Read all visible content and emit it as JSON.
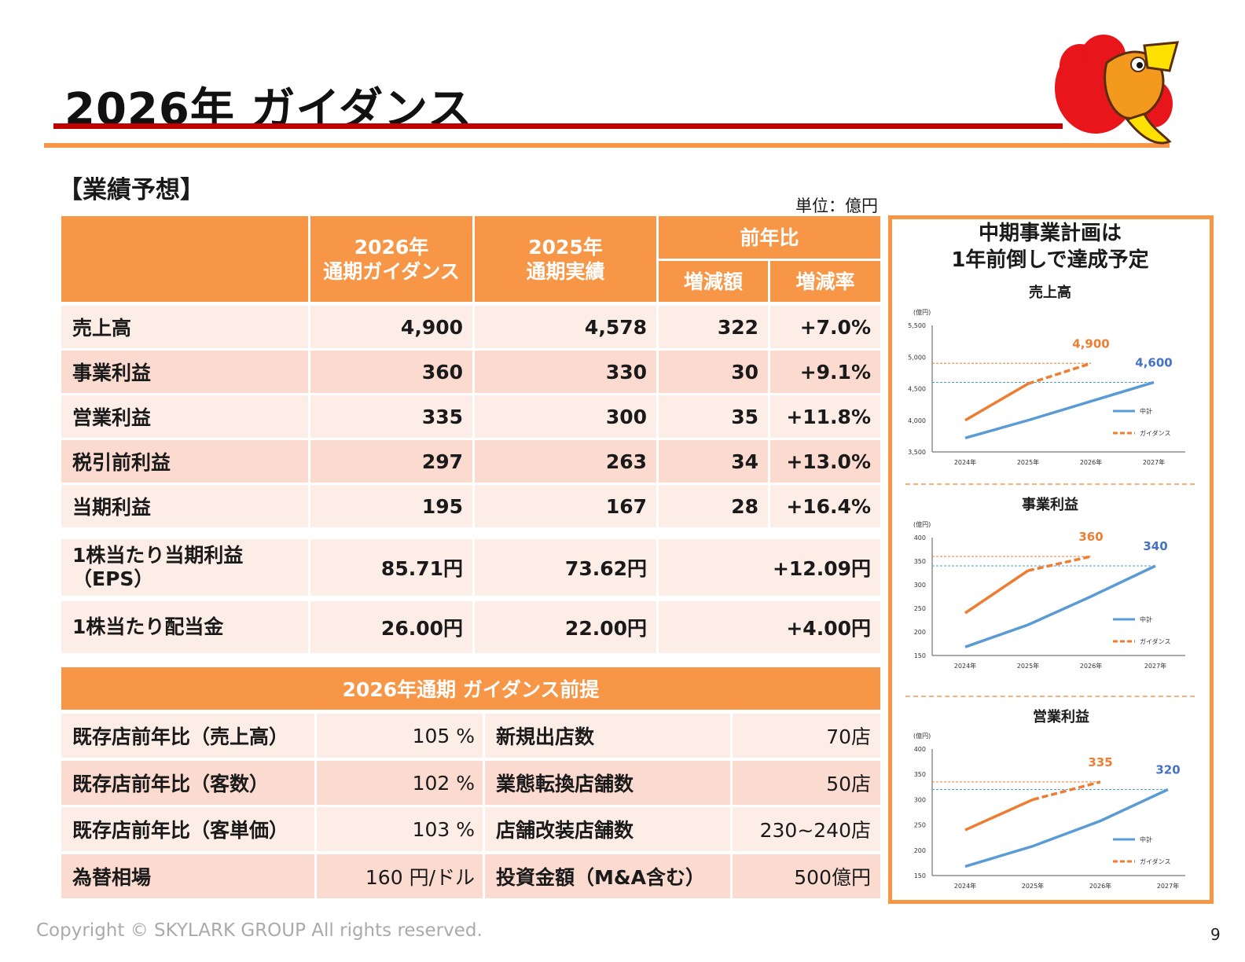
{
  "title": "2026年 ガイダンス",
  "section_title": "【業績予想】",
  "unit": "単位：億円",
  "table": {
    "headers": {
      "col1": [
        "2026年",
        "通期ガイダンス"
      ],
      "col2": [
        "2025年",
        "通期実績"
      ],
      "yoy": "前年比",
      "diff": "増減額",
      "rate": "増減率"
    },
    "rows": [
      {
        "label": "売上高",
        "g2026": "4,900",
        "a2025": "4,578",
        "diff": "322",
        "rate": "+7.0%"
      },
      {
        "label": "事業利益",
        "g2026": "360",
        "a2025": "330",
        "diff": "30",
        "rate": "+9.1%"
      },
      {
        "label": "営業利益",
        "g2026": "335",
        "a2025": "300",
        "diff": "35",
        "rate": "+11.8%"
      },
      {
        "label": "税引前利益",
        "g2026": "297",
        "a2025": "263",
        "diff": "34",
        "rate": "+13.0%"
      },
      {
        "label": "当期利益",
        "g2026": "195",
        "a2025": "167",
        "diff": "28",
        "rate": "+16.4%"
      }
    ],
    "per_share": [
      {
        "label": [
          "1株当たり当期利益",
          "（EPS）"
        ],
        "g2026": "85.71円",
        "a2025": "73.62円",
        "yoy": "+12.09円"
      },
      {
        "label": [
          "1株当たり配当金"
        ],
        "g2026": "26.00円",
        "a2025": "22.00円",
        "yoy": "+4.00円"
      }
    ]
  },
  "premises": {
    "title": "2026年通期 ガイダンス前提",
    "rows": [
      {
        "l1": "既存店前年比（売上高）",
        "v1": "105 %",
        "l2": "新規出店数",
        "v2": "70店"
      },
      {
        "l1": "既存店前年比（客数）",
        "v1": "102 %",
        "l2": "業態転換店舗数",
        "v2": "50店"
      },
      {
        "l1": "既存店前年比（客単価）",
        "v1": "103 %",
        "l2": "店舗改装店舗数",
        "v2": "230~240店"
      },
      {
        "l1": "為替相場",
        "v1": "160 円/ドル",
        "l2": "投資金額（M&A含む）",
        "v2": "500億円"
      }
    ]
  },
  "side_panel": {
    "title_lines": [
      "中期事業計画は",
      "1年前倒しで達成予定"
    ]
  },
  "chart_data": [
    {
      "type": "line",
      "title": "売上高",
      "ylabel": "(億円)",
      "x": [
        "2024年",
        "2025年",
        "2026年",
        "2027年"
      ],
      "ylim": [
        3500,
        5500
      ],
      "yticks": [
        "3,500",
        "4,000",
        "4,500",
        "5,000",
        "5,500"
      ],
      "ytick_values": [
        3500,
        4000,
        4500,
        5000,
        5500
      ],
      "series": [
        {
          "name": "中計",
          "values": [
            3720,
            4000,
            4300,
            4600
          ],
          "color": "#5b9bd5"
        },
        {
          "name": "ガイダンス",
          "values": [
            4000,
            4578,
            4900,
            null
          ],
          "color": "#ed7d31"
        }
      ],
      "annotations": [
        {
          "text": "4,900",
          "series": "ガイダンス",
          "x": "2026年",
          "value": 4900,
          "color": "#ed7d31"
        },
        {
          "text": "4,600",
          "series": "中計",
          "x": "2027年",
          "value": 4600,
          "color": "#4472c4"
        }
      ]
    },
    {
      "type": "line",
      "title": "事業利益",
      "ylabel": "(億円)",
      "x": [
        "2024年",
        "2025年",
        "2026年",
        "2027年"
      ],
      "ylim": [
        150,
        400
      ],
      "yticks": [
        "150",
        "200",
        "250",
        "300",
        "350",
        "400"
      ],
      "ytick_values": [
        150,
        200,
        250,
        300,
        350,
        400
      ],
      "series": [
        {
          "name": "中計",
          "values": [
            168,
            215,
            275,
            340
          ],
          "color": "#5b9bd5"
        },
        {
          "name": "ガイダンス",
          "values": [
            240,
            330,
            360,
            null
          ],
          "color": "#ed7d31"
        }
      ],
      "annotations": [
        {
          "text": "360",
          "series": "ガイダンス",
          "x": "2026年",
          "value": 360,
          "color": "#ed7d31"
        },
        {
          "text": "340",
          "series": "中計",
          "x": "2027年",
          "value": 340,
          "color": "#4472c4"
        }
      ]
    },
    {
      "type": "line",
      "title": "営業利益",
      "ylabel": "(億円)",
      "x": [
        "2024年",
        "2025年",
        "2026年",
        "2027年"
      ],
      "ylim": [
        150,
        400
      ],
      "yticks": [
        "150",
        "200",
        "250",
        "300",
        "350",
        "400"
      ],
      "ytick_values": [
        150,
        200,
        250,
        300,
        350,
        400
      ],
      "series": [
        {
          "name": "中計",
          "values": [
            168,
            208,
            258,
            320
          ],
          "color": "#5b9bd5"
        },
        {
          "name": "ガイダンス",
          "values": [
            240,
            300,
            335,
            null
          ],
          "color": "#ed7d31"
        }
      ],
      "annotations": [
        {
          "text": "335",
          "series": "ガイダンス",
          "x": "2026年",
          "value": 335,
          "color": "#ed7d31"
        },
        {
          "text": "320",
          "series": "中計",
          "x": "2027年",
          "value": 320,
          "color": "#4472c4"
        }
      ]
    }
  ],
  "footer": "Copyright © SKYLARK GROUP All rights reserved.",
  "page_number": "9"
}
